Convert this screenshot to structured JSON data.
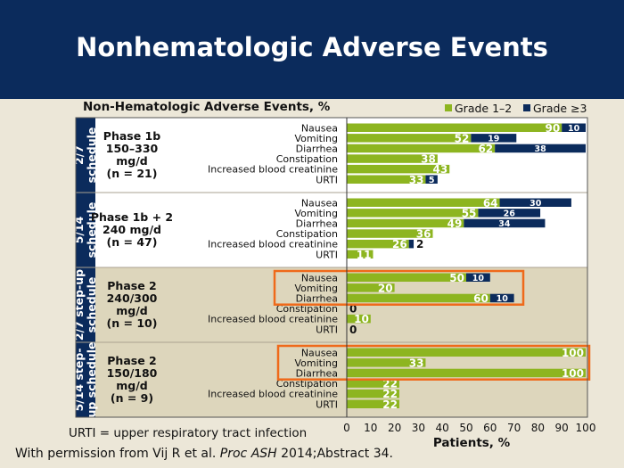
{
  "slide": {
    "title": "Nonhematologic Adverse Events",
    "footnote_prefix": "With permission from Vij R et al. ",
    "footnote_journal": "Proc ASH",
    "footnote_suffix": " 2014;Abstract 34."
  },
  "chart_data": {
    "type": "bar",
    "orientation": "horizontal",
    "stacked": true,
    "title": "Non-Hematologic Adverse Events, %",
    "xlabel": "Patients, %",
    "xlim": [
      0,
      100
    ],
    "xticks": [
      "0",
      "10",
      "20",
      "30",
      "40",
      "50",
      "60",
      "70",
      "80",
      "90",
      "100"
    ],
    "legend": {
      "placement": "top-right",
      "items": [
        {
          "name": "Grade 1–2",
          "color": "#8db520"
        },
        {
          "name": "Grade ≥3",
          "color": "#0b2b5c"
        }
      ]
    },
    "footnote": "URTI = upper respiratory tract infection",
    "groups": [
      {
        "schedule": "2/7 schedule",
        "schedule_lines": [
          "2/7",
          "schedule"
        ],
        "phase_lines": [
          "Phase 1b",
          "150–330",
          "mg/d",
          "(n = 21)"
        ],
        "shaded": false,
        "highlight": null,
        "rows": [
          {
            "event": "Nausea",
            "g12": 90,
            "g3": 10
          },
          {
            "event": "Vomiting",
            "g12": 52,
            "g3": 19
          },
          {
            "event": "Diarrhea",
            "g12": 62,
            "g3": 38
          },
          {
            "event": "Constipation",
            "g12": 38,
            "g3": null
          },
          {
            "event": "Increased blood creatinine",
            "g12": 43,
            "g3": null
          },
          {
            "event": "URTI",
            "g12": 33,
            "g3": 5
          }
        ]
      },
      {
        "schedule": "5/14 schedule",
        "schedule_lines": [
          "5/14",
          "schedule"
        ],
        "phase_lines": [
          "Phase 1b + 2",
          "240 mg/d",
          "(n = 47)"
        ],
        "shaded": false,
        "highlight": null,
        "rows": [
          {
            "event": "Nausea",
            "g12": 64,
            "g3": 30
          },
          {
            "event": "Vomiting",
            "g12": 55,
            "g3": 26
          },
          {
            "event": "Diarrhea",
            "g12": 49,
            "g3": 34
          },
          {
            "event": "Constipation",
            "g12": 36,
            "g3": null
          },
          {
            "event": "Increased blood creatinine",
            "g12": 26,
            "g3": 2
          },
          {
            "event": "URTI",
            "g12": 11,
            "g3": null
          }
        ]
      },
      {
        "schedule": "2/7 step-up schedule",
        "schedule_lines": [
          "2/7 step-up",
          "schedule"
        ],
        "phase_lines": [
          "Phase 2",
          "240/300",
          "mg/d",
          "(n = 10)"
        ],
        "shaded": true,
        "highlight": [
          0,
          2
        ],
        "rows": [
          {
            "event": "Nausea",
            "g12": 50,
            "g3": 10
          },
          {
            "event": "Vomiting",
            "g12": 20,
            "g3": null
          },
          {
            "event": "Diarrhea",
            "g12": 60,
            "g3": 10
          },
          {
            "event": "Constipation",
            "g12": 0,
            "g3": null
          },
          {
            "event": "Increased blood creatinine",
            "g12": 10,
            "g3": null
          },
          {
            "event": "URTI",
            "g12": 0,
            "g3": null
          }
        ]
      },
      {
        "schedule": "5/14 step-up schedule",
        "schedule_lines": [
          "5/14 step-",
          "up schedule"
        ],
        "phase_lines": [
          "Phase 2",
          "150/180",
          "mg/d",
          "(n = 9)"
        ],
        "shaded": true,
        "highlight": [
          0,
          2
        ],
        "rows": [
          {
            "event": "Nausea",
            "g12": 100,
            "g3": null
          },
          {
            "event": "Vomiting",
            "g12": 33,
            "g3": null
          },
          {
            "event": "Diarrhea",
            "g12": 100,
            "g3": null
          },
          {
            "event": "Constipation",
            "g12": 22,
            "g3": null
          },
          {
            "event": "Increased blood creatinine",
            "g12": 22,
            "g3": null
          },
          {
            "event": "URTI",
            "g12": 22,
            "g3": null
          }
        ]
      }
    ]
  }
}
